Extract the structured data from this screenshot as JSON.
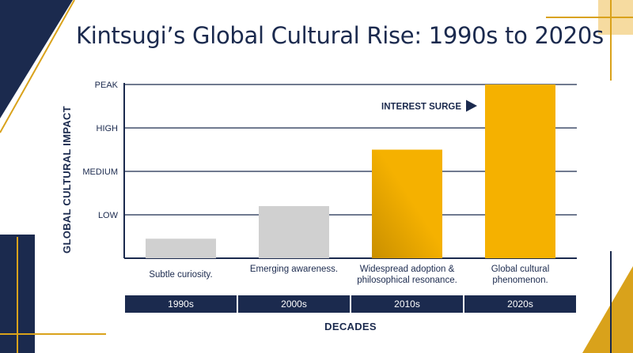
{
  "colors": {
    "navy": "#1b2a4e",
    "gold": "#f5b100",
    "gold_dark": "#c98f00",
    "gray_bar": "#d0d0d0",
    "deco_gold": "#d9a21b",
    "deco_cream": "#f6dba0"
  },
  "chart_data": {
    "type": "bar",
    "title": "Kintsugi’s Global Cultural Rise: 1990s to 2020s",
    "xlabel": "DECADES",
    "ylabel": "GLOBAL CULTURAL IMPACT",
    "categories": [
      "1990s",
      "2000s",
      "2010s",
      "2020s"
    ],
    "values": [
      0.45,
      1.2,
      2.5,
      4.0
    ],
    "y_levels": [
      "LOW",
      "MEDIUM",
      "HIGH",
      "PEAK"
    ],
    "ylim": [
      0,
      4
    ],
    "grid": true,
    "descriptions": [
      "Subtle curiosity.",
      "Emerging awareness.",
      "Widespread adoption & philosophical resonance.",
      "Global cultural phenomenon."
    ],
    "bar_colors": [
      "#d0d0d0",
      "#d0d0d0",
      "#f5b100",
      "#f5b100"
    ],
    "annotation": {
      "text": "INTEREST SURGE",
      "category": "2020s",
      "y": 3.5
    }
  }
}
